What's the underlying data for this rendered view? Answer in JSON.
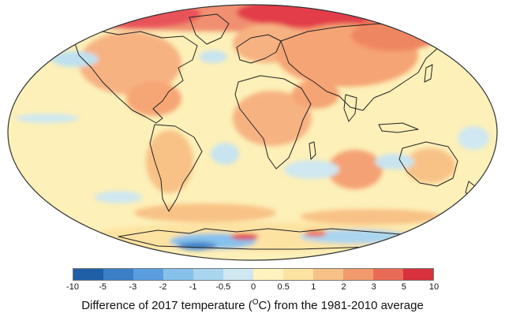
{
  "legend": {
    "tick_labels": [
      "-10",
      "-5",
      "-3",
      "-2",
      "-1",
      "-0.5",
      "0",
      "0.5",
      "1",
      "2",
      "3",
      "5",
      "10"
    ],
    "colors": [
      "#1f5fa8",
      "#3b7fc9",
      "#5a9ee0",
      "#86c1ec",
      "#aad5ef",
      "#cfe8f1",
      "#fff3c0",
      "#fde3a2",
      "#f8c286",
      "#f29a6c",
      "#ea6b55",
      "#d9313d"
    ]
  },
  "caption": {
    "before": "Difference of 2017 temperature (",
    "sup": "O",
    "after": "C) from the 1981-2010 average"
  },
  "map": {
    "ocean_base_color": "#fdf0b8",
    "warm_color": "#f6b07e",
    "hot_color": "#e8525a",
    "cool_color": "#bfe0f0",
    "coastline_color": "#222222"
  }
}
